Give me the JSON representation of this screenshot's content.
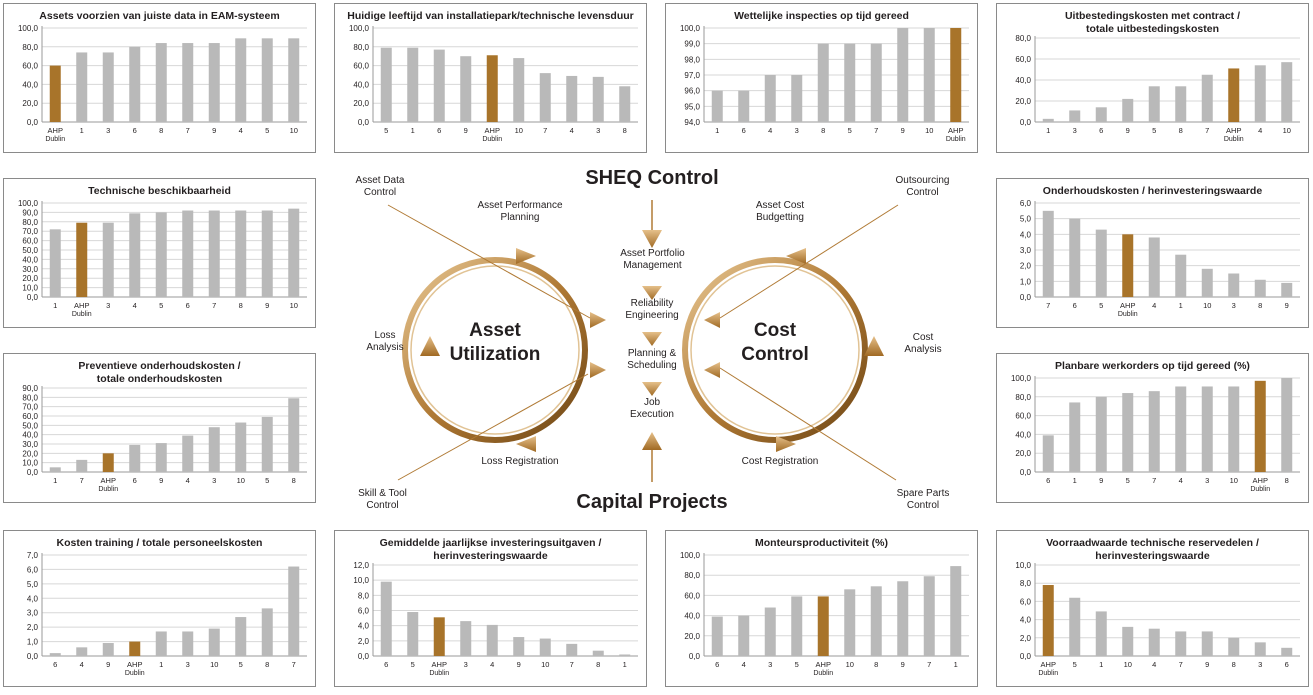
{
  "colors": {
    "bar": "#b9b9b9",
    "highlight": "#a8742a",
    "axis": "#9a9a9a",
    "grid": "#d7d7d7",
    "arrow": "#b07a35"
  },
  "diagram": {
    "top_title": "SHEQ Control",
    "bottom_title": "Capital Projects",
    "left_circle_line1": "Asset",
    "left_circle_line2": "Utilization",
    "right_circle_line1": "Cost",
    "right_circle_line2": "Control",
    "asset_data_control": [
      "Asset Data",
      "Control"
    ],
    "asset_performance_planning": [
      "Asset Performance",
      "Planning"
    ],
    "loss_analysis": [
      "Loss",
      "Analysis"
    ],
    "loss_registration": "Loss Registration",
    "skill_tool_control": [
      "Skill & Tool",
      "Control"
    ],
    "asset_portfolio_management": [
      "Asset Portfolio",
      "Management"
    ],
    "reliability_engineering": [
      "Reliability",
      "Engineering"
    ],
    "planning_scheduling": [
      "Planning &",
      "Scheduling"
    ],
    "job_execution": [
      "Job",
      "Execution"
    ],
    "asset_cost_budgetting": [
      "Asset Cost",
      "Budgetting"
    ],
    "outsourcing_control": [
      "Outsourcing",
      "Control"
    ],
    "cost_analysis": [
      "Cost",
      "Analysis"
    ],
    "cost_registration": "Cost Registration",
    "spare_parts_control": [
      "Spare Parts",
      "Control"
    ]
  },
  "chart_data": [
    {
      "id": "c1",
      "type": "bar",
      "title": "Assets voorzien van juiste data in EAM-systeem",
      "categories": [
        "AHP Dublin",
        "1",
        "3",
        "6",
        "8",
        "7",
        "9",
        "4",
        "5",
        "10"
      ],
      "values": [
        60,
        74,
        74,
        80,
        84,
        84,
        84,
        89,
        89,
        89
      ],
      "highlight": "AHP Dublin",
      "ylim": [
        0,
        100
      ],
      "ticks": [
        0,
        20,
        40,
        60,
        80,
        100
      ],
      "decimals": 1
    },
    {
      "id": "c2",
      "type": "bar",
      "title": "Huidige leeftijd van installatiepark/technische levensduur",
      "categories": [
        "5",
        "1",
        "6",
        "9",
        "AHP Dublin",
        "10",
        "7",
        "4",
        "3",
        "8"
      ],
      "values": [
        79,
        79,
        77,
        70,
        71,
        68,
        52,
        49,
        48,
        38
      ],
      "highlight": "AHP Dublin",
      "ylim": [
        0,
        100
      ],
      "ticks": [
        0,
        20,
        40,
        60,
        80,
        100
      ],
      "decimals": 1
    },
    {
      "id": "c3",
      "type": "bar",
      "title": "Wettelijke inspecties op tijd gereed",
      "categories": [
        "1",
        "6",
        "4",
        "3",
        "8",
        "5",
        "7",
        "9",
        "10",
        "AHP Dublin"
      ],
      "values": [
        96,
        96,
        97,
        97,
        99,
        99,
        99,
        100,
        100,
        100
      ],
      "highlight": "AHP Dublin",
      "ylim": [
        94,
        100
      ],
      "ticks": [
        94,
        95,
        96,
        97,
        98,
        99,
        100
      ],
      "decimals": 1
    },
    {
      "id": "c4",
      "type": "bar",
      "title": "Uitbestedingskosten met contract / totale uitbestedingskosten",
      "title_lines": [
        "Uitbestedingskosten met contract /",
        "totale uitbestedingskosten"
      ],
      "categories": [
        "1",
        "3",
        "6",
        "9",
        "5",
        "8",
        "7",
        "AHP Dublin",
        "4",
        "10"
      ],
      "values": [
        3,
        11,
        14,
        22,
        34,
        34,
        45,
        51,
        54,
        57
      ],
      "highlight": "AHP Dublin",
      "ylim": [
        0,
        80
      ],
      "ticks": [
        0,
        20,
        40,
        60,
        80
      ],
      "decimals": 1
    },
    {
      "id": "c5",
      "type": "bar",
      "title": "Technische beschikbaarheid",
      "categories": [
        "1",
        "AHP Dublin",
        "3",
        "4",
        "5",
        "6",
        "7",
        "8",
        "9",
        "10"
      ],
      "values": [
        72,
        79,
        79,
        89,
        90,
        92,
        92,
        92,
        92,
        94
      ],
      "highlight": "AHP Dublin",
      "ylim": [
        0,
        100
      ],
      "ticks": [
        0,
        10,
        20,
        30,
        40,
        50,
        60,
        70,
        80,
        90,
        100
      ],
      "decimals": 1
    },
    {
      "id": "c6",
      "type": "bar",
      "title": "Onderhoudskosten / herinvesteringswaarde",
      "categories": [
        "7",
        "6",
        "5",
        "AHP Dublin",
        "4",
        "1",
        "10",
        "3",
        "8",
        "9"
      ],
      "values": [
        5.5,
        5.0,
        4.3,
        4.0,
        3.8,
        2.7,
        1.8,
        1.5,
        1.1,
        0.9
      ],
      "highlight": "AHP Dublin",
      "ylim": [
        0,
        6
      ],
      "ticks": [
        0,
        1,
        2,
        3,
        4,
        5,
        6
      ],
      "decimals": 1
    },
    {
      "id": "c7",
      "type": "bar",
      "title": "Preventieve onderhoudskosten / totale onderhoudskosten",
      "title_lines": [
        "Preventieve onderhoudskosten /",
        "totale onderhoudskosten"
      ],
      "categories": [
        "1",
        "7",
        "AHP Dublin",
        "6",
        "9",
        "4",
        "3",
        "10",
        "5",
        "8"
      ],
      "values": [
        5,
        13,
        20,
        29,
        31,
        39,
        48,
        53,
        59,
        79
      ],
      "highlight": "AHP Dublin",
      "ylim": [
        0,
        90
      ],
      "ticks": [
        0,
        10,
        20,
        30,
        40,
        50,
        60,
        70,
        80,
        90
      ],
      "decimals": 1
    },
    {
      "id": "c8",
      "type": "bar",
      "title": "Planbare werkorders op tijd gereed (%)",
      "categories": [
        "6",
        "1",
        "9",
        "5",
        "7",
        "4",
        "3",
        "10",
        "AHP Dublin",
        "8"
      ],
      "values": [
        39,
        74,
        80,
        84,
        86,
        91,
        91,
        91,
        97,
        100
      ],
      "highlight": "AHP Dublin",
      "ylim": [
        0,
        100
      ],
      "ticks": [
        0,
        20,
        40,
        60,
        80,
        100
      ],
      "decimals": 1
    },
    {
      "id": "c9",
      "type": "bar",
      "title": "Kosten training / totale personeelskosten",
      "categories": [
        "6",
        "4",
        "9",
        "AHP Dublin",
        "1",
        "3",
        "10",
        "5",
        "8",
        "7"
      ],
      "values": [
        0.2,
        0.6,
        0.9,
        1.0,
        1.7,
        1.7,
        1.9,
        2.7,
        3.3,
        6.2
      ],
      "highlight": "AHP Dublin",
      "ylim": [
        0,
        7
      ],
      "ticks": [
        0,
        1,
        2,
        3,
        4,
        5,
        6,
        7
      ],
      "decimals": 1
    },
    {
      "id": "c10",
      "type": "bar",
      "title": "Gemiddelde jaarlijkse investeringsuitgaven / herinvesteringswaarde",
      "title_lines": [
        "Gemiddelde jaarlijkse investeringsuitgaven /",
        "herinvesteringswaarde"
      ],
      "categories": [
        "6",
        "5",
        "AHP Dublin",
        "3",
        "4",
        "9",
        "10",
        "7",
        "8",
        "1"
      ],
      "values": [
        9.8,
        5.8,
        5.1,
        4.6,
        4.1,
        2.5,
        2.3,
        1.6,
        0.7,
        0.2
      ],
      "highlight": "AHP Dublin",
      "ylim": [
        0,
        12
      ],
      "ticks": [
        0,
        2,
        4,
        6,
        8,
        10,
        12
      ],
      "decimals": 1
    },
    {
      "id": "c11",
      "type": "bar",
      "title": "Monteursproductiviteit (%)",
      "categories": [
        "6",
        "4",
        "3",
        "5",
        "AHP Dublin",
        "10",
        "8",
        "9",
        "7",
        "1"
      ],
      "values": [
        39,
        40,
        48,
        59,
        59,
        66,
        69,
        74,
        79,
        89
      ],
      "highlight": "AHP Dublin",
      "ylim": [
        0,
        100
      ],
      "ticks": [
        0,
        20,
        40,
        60,
        80,
        100
      ],
      "decimals": 1
    },
    {
      "id": "c12",
      "type": "bar",
      "title": "Voorraadwaarde technische reservedelen / herinvesteringswaarde",
      "title_lines": [
        "Voorraadwaarde technische reservedelen /",
        "herinvesteringswaarde"
      ],
      "categories": [
        "AHP Dublin",
        "5",
        "1",
        "10",
        "4",
        "7",
        "9",
        "8",
        "3",
        "6"
      ],
      "values": [
        7.8,
        6.4,
        4.9,
        3.2,
        3.0,
        2.7,
        2.7,
        2.0,
        1.5,
        0.9
      ],
      "highlight": "AHP Dublin",
      "ylim": [
        0,
        10
      ],
      "ticks": [
        0,
        2,
        4,
        6,
        8,
        10
      ],
      "decimals": 1
    }
  ]
}
